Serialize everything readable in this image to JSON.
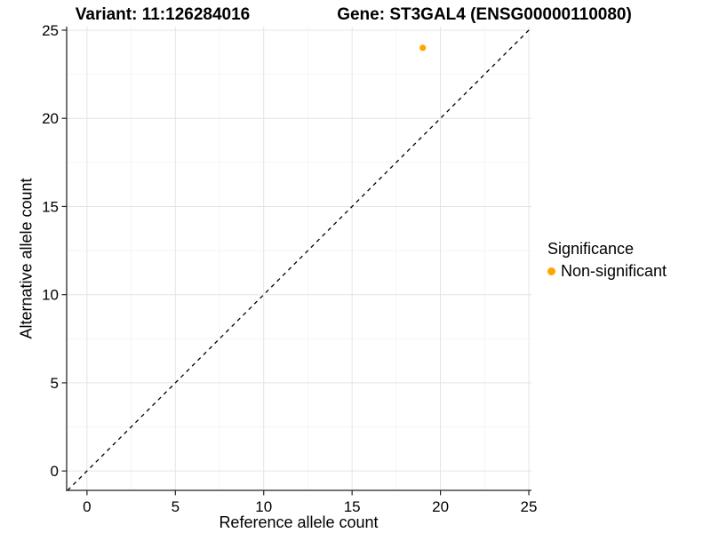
{
  "header": {
    "variant_title": "Variant: 11:126284016",
    "gene_title": "Gene: ST3GAL4 (ENSG00000110080)"
  },
  "chart_data": {
    "type": "scatter",
    "xlabel": "Reference allele count",
    "ylabel": "Alternative allele count",
    "x_ticks": [
      0,
      5,
      10,
      15,
      20,
      25
    ],
    "y_ticks": [
      0,
      5,
      10,
      15,
      20,
      25
    ],
    "x_minor_ticks": [
      2.5,
      7.5,
      12.5,
      17.5,
      22.5
    ],
    "y_minor_ticks": [
      2.5,
      7.5,
      12.5,
      17.5,
      22.5
    ],
    "xlim": [
      -1.15,
      25.15
    ],
    "ylim": [
      -1.1,
      25.2
    ],
    "grid": true,
    "points": [
      {
        "x": 19,
        "y": 24,
        "series": "Non-significant",
        "color": "#FFA500"
      }
    ],
    "reference_line": {
      "type": "identity",
      "style": "dashed",
      "color": "#000000"
    },
    "legend": {
      "title": "Significance",
      "position": "right",
      "entries": [
        {
          "label": "Non-significant",
          "color": "#FFA500"
        }
      ]
    }
  },
  "style": {
    "point_color": "#FFA500",
    "grid_major_color": "#E4E4E4",
    "grid_minor_color": "#F2F2F2",
    "axis_line_color": "#474747",
    "tick_color": "#222222",
    "text_color": "#000000",
    "background": "#FFFFFF"
  }
}
